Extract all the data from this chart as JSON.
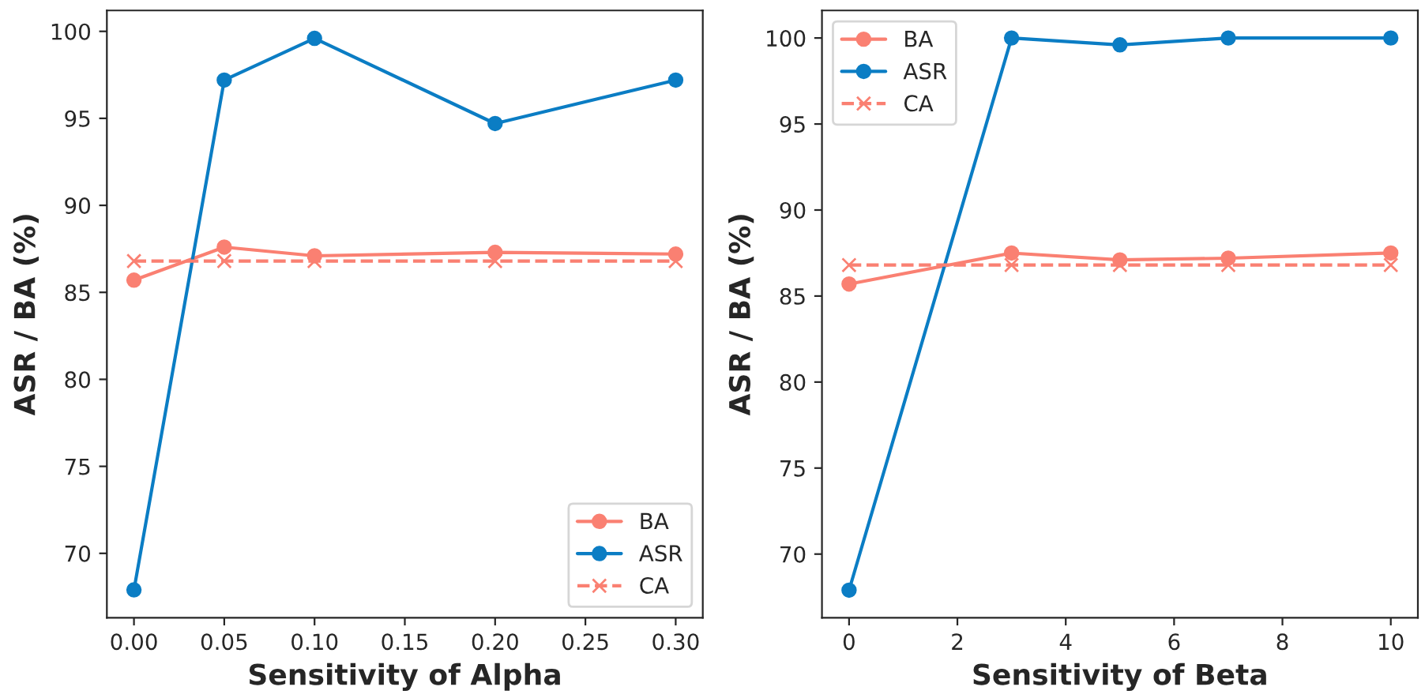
{
  "chart_data": [
    {
      "type": "line",
      "xlabel": "Sensitivity of Alpha",
      "ylabel": "ASR / BA (%)",
      "x": [
        0,
        0.05,
        0.1,
        0.2,
        0.3
      ],
      "xlim": [
        -0.015,
        0.315
      ],
      "xticks": [
        {
          "value": 0,
          "label": "0.00"
        },
        {
          "value": 0.05,
          "label": "0.05"
        },
        {
          "value": 0.1,
          "label": "0.10"
        },
        {
          "value": 0.15,
          "label": "0.15"
        },
        {
          "value": 0.2,
          "label": "0.20"
        },
        {
          "value": 0.25,
          "label": "0.25"
        },
        {
          "value": 0.3,
          "label": "0.30"
        }
      ],
      "ylim": [
        66.3,
        101.2
      ],
      "yticks": [
        70,
        75,
        80,
        85,
        90,
        95,
        100
      ],
      "legend": "bottom right",
      "series": [
        {
          "name": "BA",
          "color": "#fa8072",
          "values": [
            85.7,
            87.6,
            87.1,
            87.3,
            87.2
          ],
          "marker": "circle",
          "line_style": "solid"
        },
        {
          "name": "ASR",
          "color": "#0b7dc4",
          "values": [
            67.9,
            97.2,
            99.6,
            94.7,
            97.2
          ],
          "marker": "circle",
          "line_style": "solid"
        },
        {
          "name": "CA",
          "color": "#fa8072",
          "values": [
            86.8,
            86.8,
            86.8,
            86.8,
            86.8
          ],
          "marker": "cross",
          "line_style": "dashed"
        }
      ]
    },
    {
      "type": "line",
      "xlabel": "Sensitivity of Beta",
      "ylabel": "ASR / BA (%)",
      "x": [
        0,
        3,
        5,
        7,
        10
      ],
      "xlim": [
        -0.5,
        10.5
      ],
      "xticks": [
        0,
        2,
        4,
        6,
        8,
        10
      ],
      "ylim": [
        66.3,
        101.6
      ],
      "yticks": [
        70,
        75,
        80,
        85,
        90,
        95,
        100
      ],
      "legend": "top left",
      "series": [
        {
          "name": "BA",
          "color": "#fa8072",
          "values": [
            85.7,
            87.5,
            87.1,
            87.2,
            87.5
          ],
          "marker": "circle",
          "line_style": "solid"
        },
        {
          "name": "ASR",
          "color": "#0b7dc4",
          "values": [
            67.9,
            100,
            99.6,
            100,
            100
          ],
          "marker": "circle",
          "line_style": "solid"
        },
        {
          "name": "CA",
          "color": "#fa8072",
          "values": [
            86.8,
            86.8,
            86.8,
            86.8,
            86.8
          ],
          "marker": "cross",
          "line_style": "dashed"
        }
      ]
    }
  ]
}
